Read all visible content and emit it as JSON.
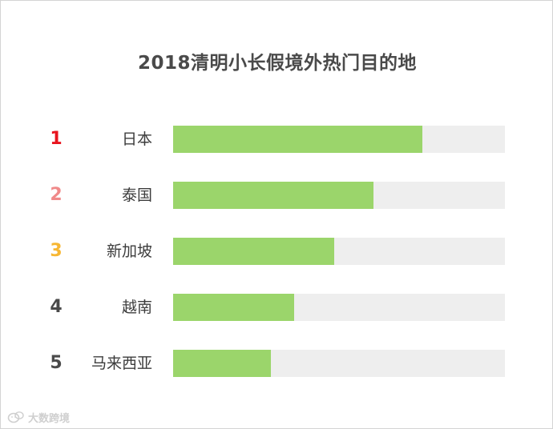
{
  "chart_data": {
    "type": "bar",
    "orientation": "horizontal",
    "title": "2018清明小长假境外热门目的地",
    "xlabel": "",
    "ylabel": "",
    "xlim": [
      0,
      100
    ],
    "grid": false,
    "legend": "none",
    "categories": [
      "日本",
      "泰国",
      "新加坡",
      "越南",
      "马来西亚"
    ],
    "ranks": [
      "1",
      "2",
      "3",
      "4",
      "5"
    ],
    "values": [
      75,
      60.5,
      48.5,
      36.5,
      29.5
    ],
    "colors": {
      "bar": "#9bd56b",
      "track": "#eeeeee",
      "rank": [
        "#e8141e",
        "#f08a8a",
        "#f7b733",
        "#4a4a4a",
        "#4a4a4a"
      ]
    }
  },
  "watermark": {
    "text": "大数跨境",
    "icon": "wechat-logo-icon"
  }
}
